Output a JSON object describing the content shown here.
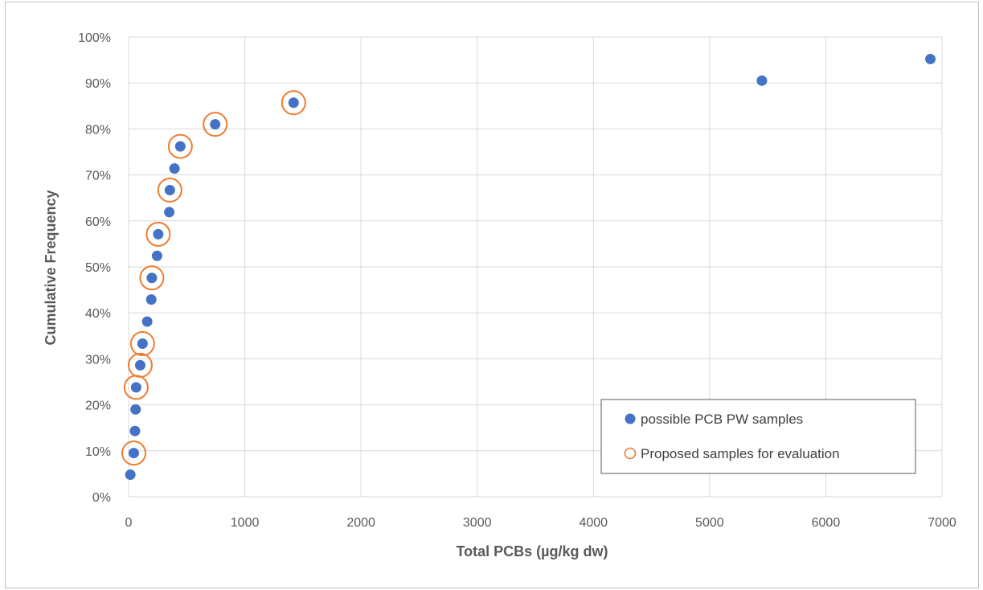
{
  "chart_data": {
    "type": "scatter",
    "xlabel": "Total PCBs (µg/kg dw)",
    "ylabel": "Cumulative Frequency",
    "xlim": [
      0,
      7000
    ],
    "ylim": [
      0,
      1
    ],
    "x_ticks": [
      "0",
      "1000",
      "2000",
      "3000",
      "4000",
      "5000",
      "6000",
      "7000"
    ],
    "y_ticks": [
      "0%",
      "10%",
      "20%",
      "30%",
      "40%",
      "50%",
      "60%",
      "70%",
      "80%",
      "90%",
      "100%"
    ],
    "grid": true,
    "legend_position": "bottom-right",
    "series": [
      {
        "name": "possible PCB PW samples",
        "marker": "filled-circle",
        "color": "#4472c4",
        "points": [
          {
            "x": 15,
            "y": 0.048
          },
          {
            "x": 45,
            "y": 0.095
          },
          {
            "x": 55,
            "y": 0.143
          },
          {
            "x": 60,
            "y": 0.19
          },
          {
            "x": 65,
            "y": 0.238
          },
          {
            "x": 100,
            "y": 0.286
          },
          {
            "x": 120,
            "y": 0.333
          },
          {
            "x": 160,
            "y": 0.381
          },
          {
            "x": 195,
            "y": 0.429
          },
          {
            "x": 200,
            "y": 0.476
          },
          {
            "x": 245,
            "y": 0.524
          },
          {
            "x": 255,
            "y": 0.571
          },
          {
            "x": 350,
            "y": 0.619
          },
          {
            "x": 355,
            "y": 0.667
          },
          {
            "x": 395,
            "y": 0.714
          },
          {
            "x": 445,
            "y": 0.762
          },
          {
            "x": 745,
            "y": 0.81
          },
          {
            "x": 1420,
            "y": 0.857
          },
          {
            "x": 5450,
            "y": 0.905
          },
          {
            "x": 6900,
            "y": 0.952
          }
        ]
      },
      {
        "name": "Proposed samples for evaluation",
        "marker": "open-circle",
        "color": "#ed7d31",
        "points": [
          {
            "x": 45,
            "y": 0.095
          },
          {
            "x": 65,
            "y": 0.238
          },
          {
            "x": 100,
            "y": 0.286
          },
          {
            "x": 120,
            "y": 0.333
          },
          {
            "x": 200,
            "y": 0.476
          },
          {
            "x": 255,
            "y": 0.571
          },
          {
            "x": 355,
            "y": 0.667
          },
          {
            "x": 445,
            "y": 0.762
          },
          {
            "x": 745,
            "y": 0.81
          },
          {
            "x": 1420,
            "y": 0.857
          }
        ]
      }
    ]
  }
}
